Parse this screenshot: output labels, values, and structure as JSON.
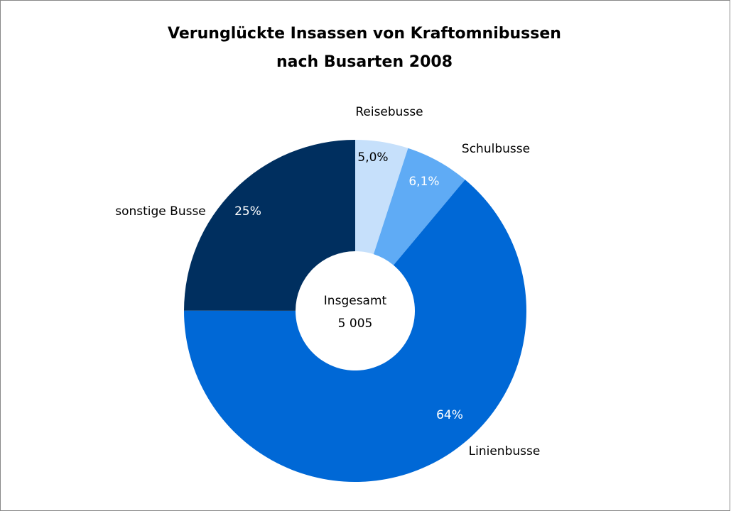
{
  "chart_data": {
    "type": "donut",
    "title": [
      "Verunglückte Insassen von Kraftomnibussen",
      "nach Busarten 2008"
    ],
    "categories": [
      "Reisebusse",
      "Schulbusse",
      "Linienbusse",
      "sonstige Busse"
    ],
    "values": [
      5.0,
      6.1,
      64,
      25
    ],
    "value_labels": [
      "5,0%",
      "6,1%",
      "64%",
      "25%"
    ],
    "colors": [
      "#c6e0fb",
      "#5fabf5",
      "#0068d6",
      "#002f5f"
    ],
    "center_text": "Insgesamt",
    "total": {
      "value": 5005,
      "label": "5 005"
    }
  }
}
